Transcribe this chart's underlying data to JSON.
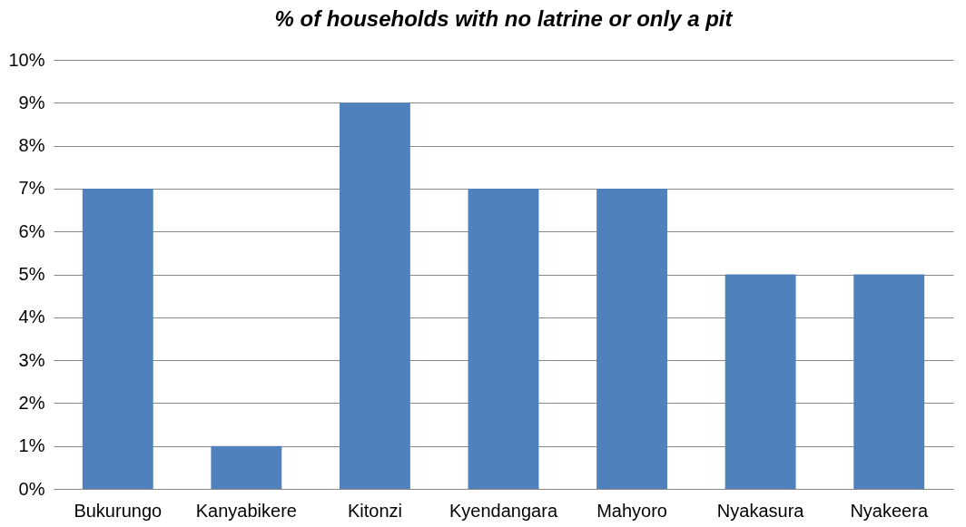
{
  "chart_data": {
    "type": "bar",
    "title": "% of households with no latrine or only a pit",
    "categories": [
      "Bukurungo",
      "Kanyabikere",
      "Kitonzi",
      "Kyendangara",
      "Mahyoro",
      "Nyakasura",
      "Nyakeera"
    ],
    "values": [
      7,
      1,
      9,
      7,
      7,
      5,
      5
    ],
    "color": "#4f81bd",
    "ylim": [
      0,
      10
    ],
    "yticks": [
      {
        "value": 0,
        "label": "0%"
      },
      {
        "value": 1,
        "label": "1%"
      },
      {
        "value": 2,
        "label": "2%"
      },
      {
        "value": 3,
        "label": "3%"
      },
      {
        "value": 4,
        "label": "4%"
      },
      {
        "value": 5,
        "label": "5%"
      },
      {
        "value": 6,
        "label": "6%"
      },
      {
        "value": 7,
        "label": "7%"
      },
      {
        "value": 8,
        "label": "8%"
      },
      {
        "value": 9,
        "label": "9%"
      },
      {
        "value": 10,
        "label": "10%"
      }
    ],
    "grid": "y"
  }
}
